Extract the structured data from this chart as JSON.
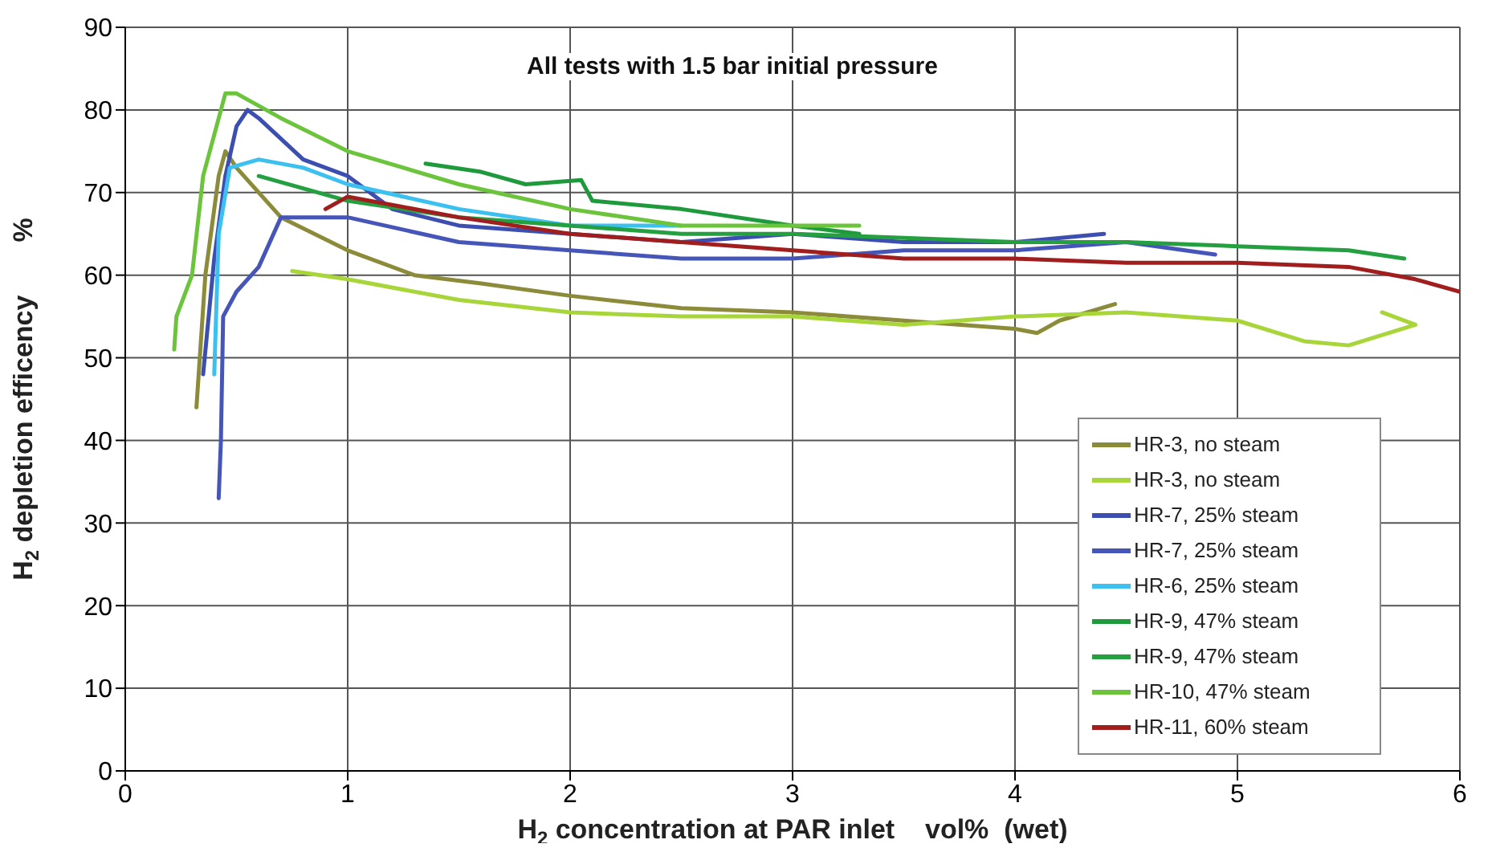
{
  "chart_data": {
    "type": "line",
    "annotations": [
      "All tests with 1.5 bar initial pressure"
    ],
    "xlabel": "H$_{2}$ concentration at PAR inlet    vol%  (wet)",
    "ylabel": "H$_{2}$ depletion efficency       %",
    "xlim": [
      0,
      6
    ],
    "xticks": [
      0,
      1,
      2,
      3,
      4,
      5,
      6
    ],
    "ylim": [
      0,
      90
    ],
    "yticks": [
      0,
      10,
      20,
      30,
      40,
      50,
      60,
      70,
      80,
      90
    ],
    "grid": true,
    "legend": "bottom right",
    "marker": "none",
    "line_style": "solid",
    "series": [
      {
        "name": "HR-3, no steam",
        "color": "#8b8b3a",
        "x": [
          0.32,
          0.36,
          0.42,
          0.45,
          0.5,
          0.7,
          1.0,
          1.3,
          1.6,
          2.0,
          2.5,
          3.0,
          3.5,
          4.0,
          4.1,
          4.2,
          4.45
        ],
        "values": [
          44,
          60,
          72,
          75,
          73,
          67,
          63,
          60,
          59,
          57.5,
          56,
          55.5,
          54.5,
          53.5,
          53,
          54.5,
          56.5
        ]
      },
      {
        "name": "HR-3, no steam",
        "color": "#a8d63a",
        "x": [
          0.75,
          1.0,
          1.5,
          2.0,
          2.5,
          3.0,
          3.5,
          4.0,
          4.5,
          5.0,
          5.3,
          5.5,
          5.8,
          5.65
        ],
        "values": [
          60.5,
          59.5,
          57,
          55.5,
          55,
          55,
          54,
          55,
          55.5,
          54.5,
          52,
          51.5,
          54,
          55.5
        ]
      },
      {
        "name": "HR-7, 25% steam",
        "color": "#3c4fb0",
        "x": [
          0.35,
          0.4,
          0.45,
          0.5,
          0.55,
          0.6,
          0.8,
          1.0,
          1.2,
          1.5,
          2.0,
          2.5,
          3.0,
          3.5,
          4.0,
          4.4
        ],
        "values": [
          48,
          62,
          72,
          78,
          80,
          79,
          74,
          72,
          68,
          66,
          65,
          64,
          65,
          64,
          64,
          65
        ]
      },
      {
        "name": "HR-7, 25% steam",
        "color": "#4656b8",
        "x": [
          0.42,
          0.43,
          0.44,
          0.5,
          0.6,
          0.7,
          1.0,
          1.5,
          2.0,
          2.5,
          3.0,
          3.5,
          4.0,
          4.5,
          4.9
        ],
        "values": [
          33,
          40,
          55,
          58,
          61,
          67,
          67,
          64,
          63,
          62,
          62,
          63,
          63,
          64,
          62.5
        ]
      },
      {
        "name": "HR-6, 25% steam",
        "color": "#3cc0f0",
        "x": [
          0.4,
          0.42,
          0.47,
          0.6,
          0.8,
          1.0,
          1.5,
          2.0,
          2.5
        ],
        "values": [
          48,
          65,
          73,
          74,
          73,
          71,
          68,
          66,
          66
        ]
      },
      {
        "name": "HR-9, 47% steam",
        "color": "#1e9a3c",
        "x": [
          1.35,
          1.6,
          1.8,
          2.05,
          2.1,
          2.5,
          3.0,
          3.3
        ],
        "values": [
          73.5,
          72.5,
          71,
          71.5,
          69,
          68,
          66,
          65
        ]
      },
      {
        "name": "HR-9, 47% steam",
        "color": "#24a040",
        "x": [
          0.6,
          1.0,
          1.5,
          2.0,
          2.5,
          3.0,
          3.5,
          4.0,
          4.5,
          5.0,
          5.5,
          5.75
        ],
        "values": [
          72,
          69,
          67,
          66,
          65,
          65,
          64.5,
          64,
          64,
          63.5,
          63,
          62
        ]
      },
      {
        "name": "HR-10, 47% steam",
        "color": "#6cc43c",
        "x": [
          0.22,
          0.23,
          0.3,
          0.35,
          0.45,
          0.5,
          0.7,
          1.0,
          1.5,
          2.0,
          2.5,
          3.0,
          3.3
        ],
        "values": [
          51,
          55,
          60,
          72,
          82,
          82,
          79,
          75,
          71,
          68,
          66,
          66,
          66
        ]
      },
      {
        "name": "HR-11, 60% steam",
        "color": "#a01e1e",
        "x": [
          0.9,
          1.0,
          1.5,
          2.0,
          2.5,
          3.0,
          3.5,
          4.0,
          4.5,
          5.0,
          5.5,
          5.8,
          6.0
        ],
        "values": [
          68,
          69.5,
          67,
          65,
          64,
          63,
          62,
          62,
          61.5,
          61.5,
          61,
          59.5,
          58
        ]
      }
    ]
  }
}
